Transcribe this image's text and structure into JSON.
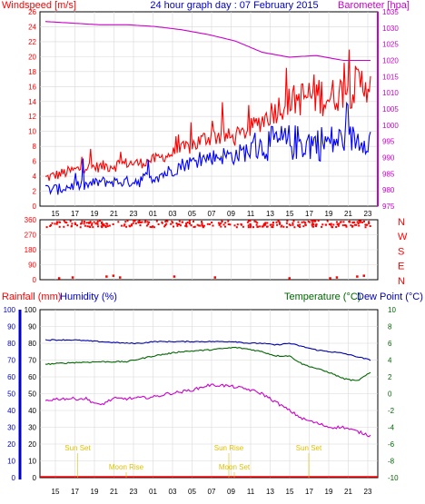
{
  "colors": {
    "wind": "#ff0000",
    "gust": "#ff0000",
    "windavg": "#0000ff",
    "baro": "#cc00cc",
    "winddir": "#ff0000",
    "rain": "#ff0000",
    "humidity": "#cc00cc",
    "temp": "#006600",
    "dew": "#0000aa",
    "astro": "#e0c000",
    "axisblue": "#0000cc",
    "grid": "#d8d8d8"
  },
  "chart_data": [
    {
      "type": "line",
      "title": "24 hour graph day : 07 February 2015",
      "ylabel": "Windspeed [m/s]",
      "y2label": "Barometer [hpa]",
      "ylim": [
        0,
        26
      ],
      "y2lim": [
        975,
        1035
      ],
      "yticks": [
        "2",
        "4",
        "6",
        "8",
        "10",
        "12",
        "14",
        "16",
        "18",
        "20",
        "22",
        "24",
        "26"
      ],
      "y2ticks": [
        "975",
        "980",
        "985",
        "990",
        "995",
        "1000",
        "1005",
        "1010",
        "1015",
        "1020",
        "1025",
        "1030",
        "1035"
      ],
      "xticks": [
        "15",
        "17",
        "19",
        "21",
        "23",
        "01",
        "03",
        "05",
        "07",
        "09",
        "11",
        "13",
        "15",
        "17",
        "19",
        "21",
        "23"
      ],
      "series": [
        {
          "key": "wind_max",
          "x": [
            0,
            1,
            2,
            3,
            4,
            5,
            6,
            7,
            8,
            9,
            10,
            11,
            12,
            13,
            14,
            15,
            16,
            17,
            18,
            19,
            20,
            21,
            22,
            23,
            24
          ],
          "y": [
            4.5,
            5,
            5.5,
            6,
            6,
            6.5,
            6.5,
            6.5,
            7,
            7.5,
            8.5,
            9.5,
            10.5,
            11,
            10,
            11.5,
            13,
            15,
            16,
            17,
            18,
            17,
            18,
            19,
            20
          ]
        },
        {
          "key": "wind_min",
          "x": [
            0,
            1,
            2,
            3,
            4,
            5,
            6,
            7,
            8,
            9,
            10,
            11,
            12,
            13,
            14,
            15,
            16,
            17,
            18,
            19,
            20,
            21,
            22,
            23,
            24
          ],
          "y": [
            3,
            3.5,
            4,
            4.5,
            4.5,
            4.5,
            5,
            5,
            5.5,
            6,
            6.5,
            7,
            8,
            8,
            8,
            9,
            10,
            11,
            12,
            12,
            12,
            12,
            13,
            13,
            14
          ]
        },
        {
          "key": "wind_avg_hi",
          "x": [
            0,
            1,
            2,
            3,
            4,
            5,
            6,
            7,
            8,
            9,
            10,
            11,
            12,
            13,
            14,
            15,
            16,
            17,
            18,
            19,
            20,
            21,
            22,
            23,
            24
          ],
          "y": [
            3,
            3,
            3.5,
            3.5,
            4,
            4,
            4,
            4.5,
            5,
            5.5,
            6.5,
            7,
            7.5,
            8,
            8,
            9,
            10,
            11,
            11,
            11,
            11,
            11,
            11,
            11,
            11
          ]
        },
        {
          "key": "wind_avg_lo",
          "x": [
            0,
            1,
            2,
            3,
            4,
            5,
            6,
            7,
            8,
            9,
            10,
            11,
            12,
            13,
            14,
            15,
            16,
            17,
            18,
            19,
            20,
            21,
            22,
            23,
            24
          ],
          "y": [
            1.5,
            1.5,
            2,
            2,
            2.5,
            2.5,
            2.5,
            2.5,
            3,
            3.5,
            4.5,
            5,
            5.5,
            5.5,
            5.5,
            6,
            6,
            6,
            6,
            6,
            6,
            6,
            7,
            7,
            7
          ]
        },
        {
          "key": "barometer",
          "x": [
            0,
            2,
            4,
            6,
            8,
            10,
            12,
            14,
            16,
            18,
            20,
            22,
            24
          ],
          "y": [
            1032,
            1031.5,
            1031,
            1031,
            1030.5,
            1029.5,
            1028,
            1026,
            1022.5,
            1021,
            1021.5,
            1020,
            1020
          ]
        }
      ]
    },
    {
      "type": "scatter",
      "ylabel_right": [
        "N",
        "W",
        "S",
        "E",
        "N"
      ],
      "yticks": [
        "360",
        "270",
        "180",
        "90",
        "0"
      ],
      "ylim": [
        0,
        360
      ],
      "series": [
        {
          "key": "direction_main",
          "x_range": [
            0,
            24
          ],
          "y_center": 335,
          "spread": 20
        },
        {
          "key": "direction_north",
          "x": [
            1,
            2,
            4.5,
            5,
            5.5,
            9.5,
            12.5,
            18,
            21,
            21.5,
            23,
            23.5
          ],
          "y": [
            10,
            15,
            20,
            25,
            15,
            20,
            15,
            10,
            10,
            15,
            20,
            25
          ]
        }
      ]
    },
    {
      "type": "line",
      "ylabel_left": "Rainfall (mm)",
      "ylabel_left2": "Humidity (%)",
      "ylabel_right": "Temperature (°C)",
      "ylabel_right2": "Dew Point (°C)",
      "ylim": [
        0,
        100
      ],
      "y2lim": [
        -10,
        10
      ],
      "yticks": [
        "0",
        "10",
        "20",
        "30",
        "40",
        "50",
        "60",
        "70",
        "80",
        "90",
        "100"
      ],
      "y2ticks": [
        "-10",
        "-8",
        "-6",
        "-4",
        "-2",
        "0",
        "2",
        "4",
        "6",
        "8",
        "10"
      ],
      "xticks": [
        "15",
        "17",
        "19",
        "21",
        "23",
        "01",
        "03",
        "05",
        "07",
        "09",
        "11",
        "13",
        "15",
        "17",
        "19",
        "21",
        "23"
      ],
      "series": [
        {
          "key": "humidity",
          "x": [
            0,
            2,
            4,
            6,
            7,
            8,
            10,
            12,
            14,
            15,
            16,
            17,
            18,
            19,
            20,
            21,
            22,
            23,
            24
          ],
          "y": [
            82,
            82,
            81,
            80,
            80,
            81,
            81,
            81,
            81,
            80,
            80,
            79,
            80,
            78,
            76,
            75,
            74,
            72,
            70
          ]
        },
        {
          "key": "temperature",
          "x": [
            0,
            2,
            4,
            6,
            8,
            10,
            12,
            14,
            15,
            16,
            17,
            18,
            19,
            20,
            21,
            22,
            23,
            24
          ],
          "y": [
            3.5,
            3.7,
            3.8,
            3.8,
            4.5,
            5.0,
            5.2,
            5.5,
            5.3,
            5.0,
            4.5,
            4.5,
            3.5,
            3.0,
            2.5,
            1.8,
            1.5,
            2.5
          ]
        },
        {
          "key": "dewpoint",
          "x": [
            0,
            2,
            4,
            6,
            8,
            9,
            10,
            12,
            14,
            15,
            16,
            17,
            18,
            19,
            20,
            21,
            22,
            23,
            24
          ],
          "y": [
            6.2,
            6.1,
            6.0,
            6.0,
            5.6,
            5.6,
            5.7,
            5.8,
            5.8,
            5.8,
            5.8,
            5.2,
            5.3,
            4.5,
            5.0,
            3.5,
            3.0,
            5.2,
            3.0
          ]
        },
        {
          "key": "dew_humid_trace",
          "x": [
            0,
            1,
            2,
            3,
            4,
            5,
            6,
            7,
            8,
            9,
            10,
            11,
            12,
            13,
            14,
            15,
            16,
            17,
            18,
            19,
            20,
            21,
            22,
            23,
            24
          ],
          "y": [
            -0.8,
            -0.6,
            -0.6,
            -0.6,
            -1.4,
            -0.6,
            -0.6,
            -0.5,
            -0.4,
            0,
            0.2,
            0.5,
            1.0,
            1.0,
            0.8,
            0.5,
            0,
            -1,
            -2,
            -3,
            -3.5,
            -4,
            -4,
            -4.5,
            -5
          ]
        }
      ],
      "annotations": [
        {
          "label": "Sun Set",
          "hour": 1
        },
        {
          "label": "Moon Rise",
          "hour": 4
        },
        {
          "label": "Sun Rise",
          "hour": 11
        },
        {
          "label": "Moon Set",
          "hour": 11.2
        },
        {
          "label": "Sun Set",
          "hour": 17
        }
      ]
    }
  ]
}
